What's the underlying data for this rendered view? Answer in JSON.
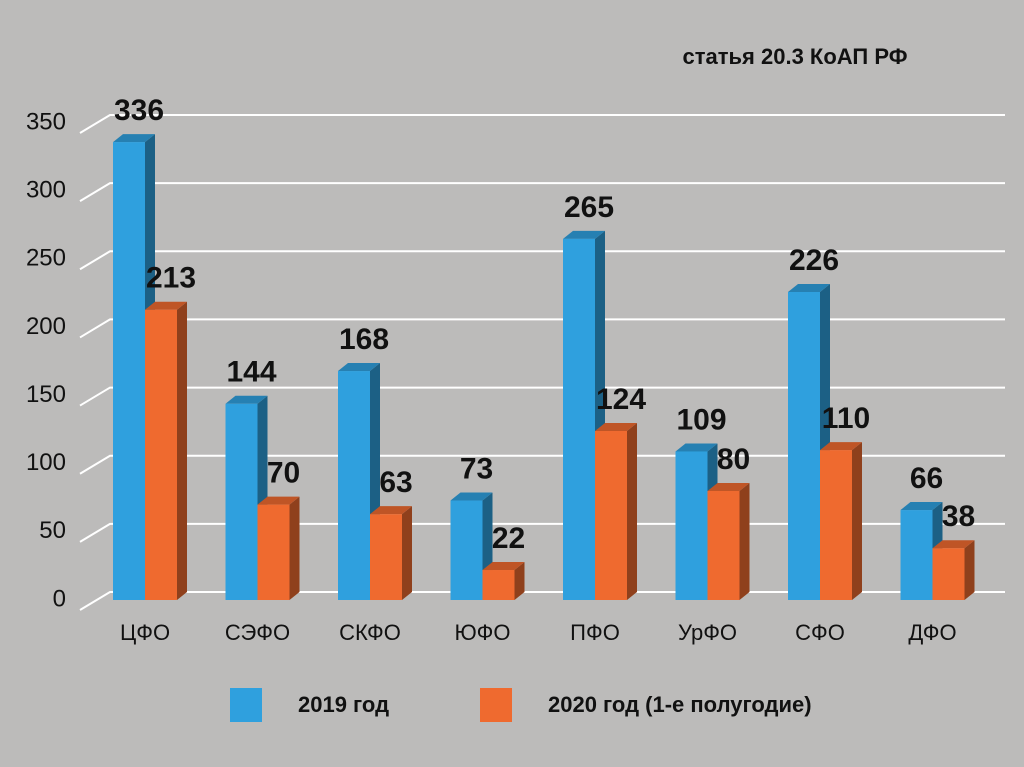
{
  "chart_data": {
    "type": "bar3d",
    "title": "статья 20.3 КоАП РФ",
    "categories": [
      "ЦФО",
      "СЭФО",
      "СКФО",
      "ЮФО",
      "ПФО",
      "УрФО",
      "СФО",
      "ДФО"
    ],
    "series": [
      {
        "name": "2019 год",
        "color": "#2fa0de",
        "values": [
          336,
          144,
          168,
          73,
          265,
          109,
          226,
          66
        ]
      },
      {
        "name": "2020 год (1-е полугодие)",
        "color": "#ef6a2f",
        "values": [
          213,
          70,
          63,
          22,
          124,
          80,
          110,
          38
        ]
      }
    ],
    "ylim": [
      0,
      350
    ],
    "yticks": [
      0,
      50,
      100,
      150,
      200,
      250,
      300,
      350
    ],
    "grid": true
  }
}
